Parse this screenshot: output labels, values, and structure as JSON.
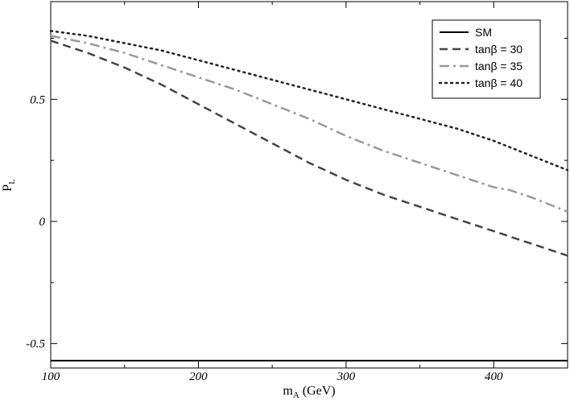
{
  "chart_data": {
    "type": "line",
    "xlabel": "m",
    "xlabel_sub": "A",
    "xlabel_unit": " (GeV)",
    "ylabel": "P",
    "ylabel_sub": "L",
    "xlim": [
      100,
      450
    ],
    "ylim": [
      -0.6,
      0.9
    ],
    "xticks": [
      100,
      200,
      300,
      400
    ],
    "xtick_labels": [
      "100",
      "200",
      "300",
      "400"
    ],
    "yticks": [
      -0.5,
      0,
      0.5
    ],
    "ytick_labels": [
      "-0.5",
      "0",
      "0.5"
    ],
    "grid": false,
    "legend_position": "top-right",
    "series": [
      {
        "name": "SM",
        "style": "solid",
        "color": "#000000",
        "x": [
          100,
          450
        ],
        "y": [
          -0.57,
          -0.57
        ]
      },
      {
        "name": "tanβ = 30",
        "style": "dashed",
        "color": "#444444",
        "x": [
          100,
          125,
          150,
          175,
          200,
          225,
          250,
          275,
          300,
          325,
          350,
          375,
          400,
          425,
          450
        ],
        "y": [
          0.74,
          0.69,
          0.63,
          0.56,
          0.48,
          0.4,
          0.32,
          0.24,
          0.17,
          0.11,
          0.06,
          0.01,
          -0.04,
          -0.09,
          -0.14
        ]
      },
      {
        "name": "tanβ = 35",
        "style": "dashdot",
        "color": "#999999",
        "x": [
          100,
          125,
          150,
          175,
          200,
          225,
          250,
          275,
          300,
          325,
          350,
          375,
          400,
          410,
          425,
          450
        ],
        "y": [
          0.76,
          0.73,
          0.69,
          0.64,
          0.59,
          0.54,
          0.48,
          0.42,
          0.35,
          0.29,
          0.24,
          0.19,
          0.14,
          0.13,
          0.1,
          0.04
        ]
      },
      {
        "name": "tanβ = 40",
        "style": "dotted",
        "color": "#222222",
        "x": [
          100,
          125,
          150,
          175,
          200,
          225,
          250,
          275,
          300,
          325,
          350,
          375,
          400,
          425,
          450
        ],
        "y": [
          0.78,
          0.76,
          0.73,
          0.7,
          0.66,
          0.62,
          0.58,
          0.54,
          0.5,
          0.46,
          0.42,
          0.38,
          0.33,
          0.27,
          0.21
        ]
      }
    ]
  }
}
